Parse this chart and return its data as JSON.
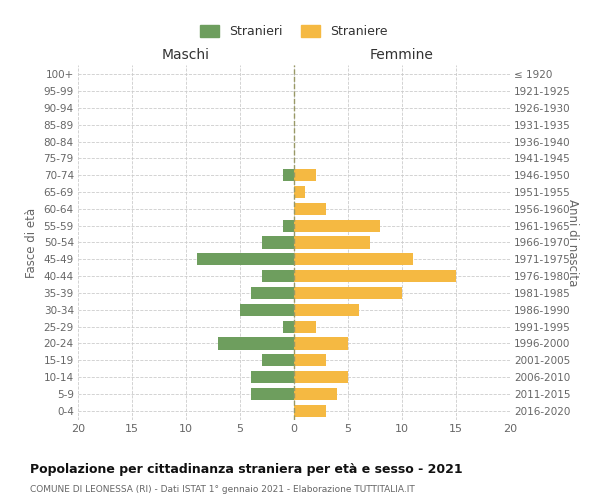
{
  "age_groups_bottom_to_top": [
    "0-4",
    "5-9",
    "10-14",
    "15-19",
    "20-24",
    "25-29",
    "30-34",
    "35-39",
    "40-44",
    "45-49",
    "50-54",
    "55-59",
    "60-64",
    "65-69",
    "70-74",
    "75-79",
    "80-84",
    "85-89",
    "90-94",
    "95-99",
    "100+"
  ],
  "birth_years_bottom_to_top": [
    "2016-2020",
    "2011-2015",
    "2006-2010",
    "2001-2005",
    "1996-2000",
    "1991-1995",
    "1986-1990",
    "1981-1985",
    "1976-1980",
    "1971-1975",
    "1966-1970",
    "1961-1965",
    "1956-1960",
    "1951-1955",
    "1946-1950",
    "1941-1945",
    "1936-1940",
    "1931-1935",
    "1926-1930",
    "1921-1925",
    "≤ 1920"
  ],
  "males_bottom_to_top": [
    0,
    4,
    4,
    3,
    7,
    1,
    5,
    4,
    3,
    9,
    3,
    1,
    0,
    0,
    1,
    0,
    0,
    0,
    0,
    0,
    0
  ],
  "females_bottom_to_top": [
    3,
    4,
    5,
    3,
    5,
    2,
    6,
    10,
    15,
    11,
    7,
    8,
    3,
    1,
    2,
    0,
    0,
    0,
    0,
    0,
    0
  ],
  "male_color": "#6e9e5e",
  "female_color": "#f5b942",
  "title": "Popolazione per cittadinanza straniera per età e sesso - 2021",
  "subtitle": "COMUNE DI LEONESSA (RI) - Dati ISTAT 1° gennaio 2021 - Elaborazione TUTTITALIA.IT",
  "xlabel_left": "Maschi",
  "xlabel_right": "Femmine",
  "ylabel_left": "Fasce di età",
  "ylabel_right": "Anni di nascita",
  "legend_male": "Stranieri",
  "legend_female": "Straniere",
  "xlim": 20,
  "xticks": [
    -20,
    -15,
    -10,
    -5,
    0,
    5,
    10,
    15,
    20
  ],
  "xticklabels": [
    "20",
    "15",
    "10",
    "5",
    "0",
    "5",
    "10",
    "15",
    "20"
  ],
  "background_color": "#ffffff",
  "grid_color": "#cccccc",
  "centerline_color": "#999966",
  "text_color": "#666666",
  "title_color": "#111111",
  "subtitle_color": "#666666"
}
